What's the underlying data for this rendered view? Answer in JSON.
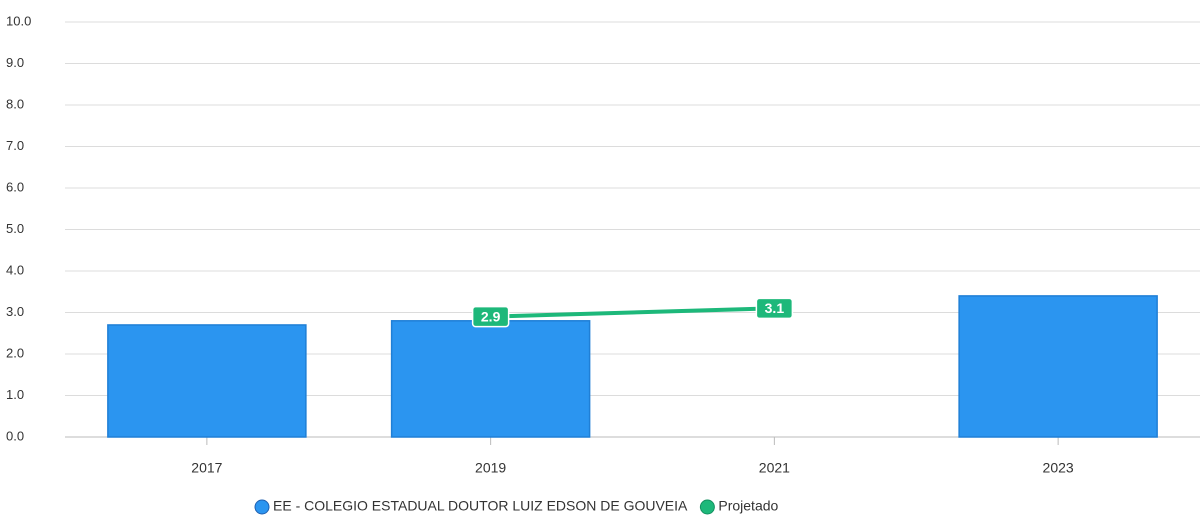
{
  "chart_data": {
    "type": "combo",
    "categories": [
      "2017",
      "2019",
      "2021",
      "2023"
    ],
    "series": [
      {
        "name": "EE - COLEGIO ESTADUAL DOUTOR LUIZ EDSON DE GOUVEIA",
        "type": "bar",
        "color": "#2b95f0",
        "values": [
          2.7,
          2.8,
          null,
          3.4
        ]
      },
      {
        "name": "Projetado",
        "type": "line",
        "color": "#1db87a",
        "values": [
          null,
          2.9,
          3.1,
          null
        ]
      }
    ],
    "ylim": [
      0,
      10
    ],
    "yticks": [
      {
        "value": 0,
        "label": "0.0"
      },
      {
        "value": 1,
        "label": "1.0"
      },
      {
        "value": 2,
        "label": "2.0"
      },
      {
        "value": 3,
        "label": "3.0"
      },
      {
        "value": 4,
        "label": "4.0"
      },
      {
        "value": 5,
        "label": "5.0"
      },
      {
        "value": 6,
        "label": "6.0"
      },
      {
        "value": 7,
        "label": "7.0"
      },
      {
        "value": 8,
        "label": "8.0"
      },
      {
        "value": 9,
        "label": "9.0"
      },
      {
        "value": 10,
        "label": "10.0"
      }
    ],
    "grid": true
  }
}
